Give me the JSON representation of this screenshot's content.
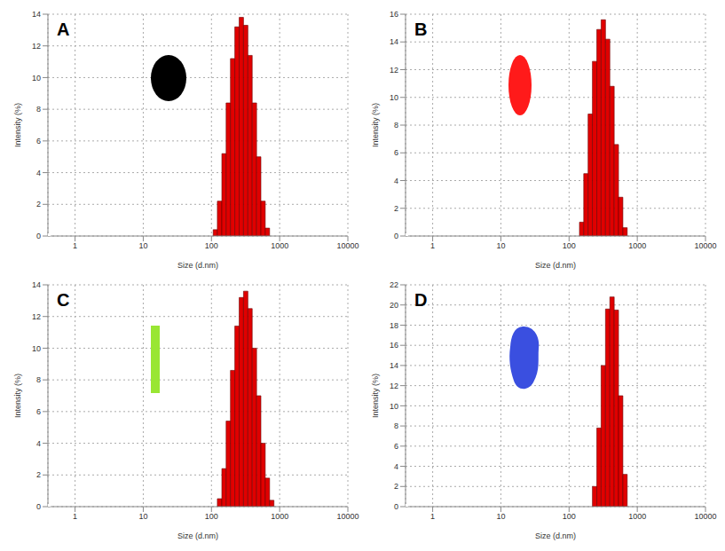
{
  "chart_data": [
    {
      "type": "histogram",
      "title": "A",
      "x_label": "Size (d.nm)",
      "y_label": "Intensity (%)",
      "bins": [
        106,
        122,
        142,
        164,
        190,
        220,
        255,
        295,
        342,
        396,
        459,
        531,
        615,
        712
      ],
      "values": [
        0.4,
        2.2,
        5.2,
        8.4,
        11.2,
        13.2,
        13.8,
        13.3,
        11.4,
        8.4,
        5.0,
        2.2,
        0.5
      ],
      "color": "#e00000",
      "log": "x",
      "xlim": [
        0.4,
        10000
      ],
      "xticks": [
        1,
        10,
        100,
        1000,
        10000
      ],
      "ylim": [
        0,
        14
      ],
      "yticks": [
        0,
        2,
        4,
        6,
        8,
        10,
        12,
        14
      ],
      "grid": true
    },
    {
      "type": "histogram",
      "title": "B",
      "x_label": "Size (d.nm)",
      "y_label": "Intensity (%)",
      "bins": [
        142,
        164,
        190,
        220,
        255,
        295,
        342,
        396,
        459,
        531,
        615,
        712
      ],
      "values": [
        1.0,
        4.5,
        8.8,
        12.6,
        14.9,
        15.6,
        14.2,
        10.8,
        6.6,
        2.8,
        0.6
      ],
      "color": "#e00000",
      "log": "x",
      "xlim": [
        0.4,
        10000
      ],
      "xticks": [
        1,
        10,
        100,
        1000,
        10000
      ],
      "ylim": [
        0,
        16
      ],
      "yticks": [
        0,
        2,
        4,
        6,
        8,
        10,
        12,
        14,
        16
      ],
      "grid": true
    },
    {
      "type": "histogram",
      "title": "C",
      "x_label": "Size (d.nm)",
      "y_label": "Intensity (%)",
      "bins": [
        122,
        142,
        164,
        190,
        220,
        255,
        295,
        342,
        396,
        459,
        531,
        615,
        712,
        825
      ],
      "values": [
        0.5,
        2.4,
        5.4,
        8.6,
        11.4,
        13.2,
        13.6,
        12.5,
        10.0,
        7.0,
        4.0,
        1.8,
        0.4
      ],
      "color": "#e00000",
      "log": "x",
      "xlim": [
        0.4,
        10000
      ],
      "xticks": [
        1,
        10,
        100,
        1000,
        10000
      ],
      "ylim": [
        0,
        14
      ],
      "yticks": [
        0,
        2,
        4,
        6,
        8,
        10,
        12,
        14
      ],
      "grid": true
    },
    {
      "type": "histogram",
      "title": "D",
      "x_label": "Size (d.nm)",
      "y_label": "Intensity (%)",
      "bins": [
        220,
        255,
        295,
        342,
        396,
        459,
        531,
        615,
        712
      ],
      "values": [
        2.0,
        7.8,
        14.0,
        19.6,
        20.8,
        19.5,
        11.0,
        3.2
      ],
      "color": "#e00000",
      "log": "x",
      "xlim": [
        0.4,
        10000
      ],
      "xticks": [
        1,
        10,
        100,
        1000,
        10000
      ],
      "ylim": [
        0,
        22
      ],
      "yticks": [
        0,
        2,
        4,
        6,
        8,
        10,
        12,
        14,
        16,
        18,
        20,
        22
      ],
      "grid": true
    }
  ]
}
